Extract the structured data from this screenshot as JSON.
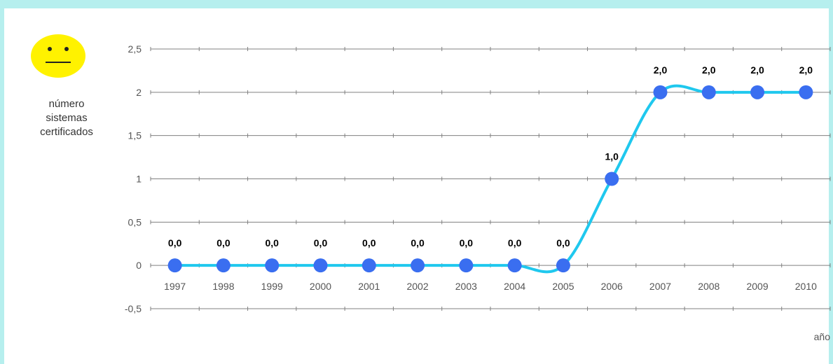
{
  "ylabel_lines": [
    "número",
    "sistemas",
    "certificados"
  ],
  "icon": "neutral-face-icon",
  "colors": {
    "line": "#1fc8ee",
    "marker": "#3a6ef0",
    "face": "#fff200",
    "frame": "#b6efee"
  },
  "chart_data": {
    "type": "line",
    "categories": [
      "1997",
      "1998",
      "1999",
      "2000",
      "2001",
      "2002",
      "2003",
      "2004",
      "2005",
      "2006",
      "2007",
      "2008",
      "2009",
      "2010"
    ],
    "values": [
      0,
      0,
      0,
      0,
      0,
      0,
      0,
      0,
      0,
      1,
      2,
      2,
      2,
      2
    ],
    "data_labels": [
      "0,0",
      "0,0",
      "0,0",
      "0,0",
      "0,0",
      "0,0",
      "0,0",
      "0,0",
      "0,0",
      "1,0",
      "2,0",
      "2,0",
      "2,0",
      "2,0"
    ],
    "ylim": [
      -0.5,
      2.5
    ],
    "yticks": [
      -0.5,
      0,
      0.5,
      1,
      1.5,
      2,
      2.5
    ],
    "ytick_labels": [
      "-0,5",
      "0",
      "0,5",
      "1",
      "1,5",
      "2",
      "2,5"
    ],
    "xlabel": "año",
    "ylabel": "número sistemas certificados",
    "grid": true,
    "smooth": true
  }
}
